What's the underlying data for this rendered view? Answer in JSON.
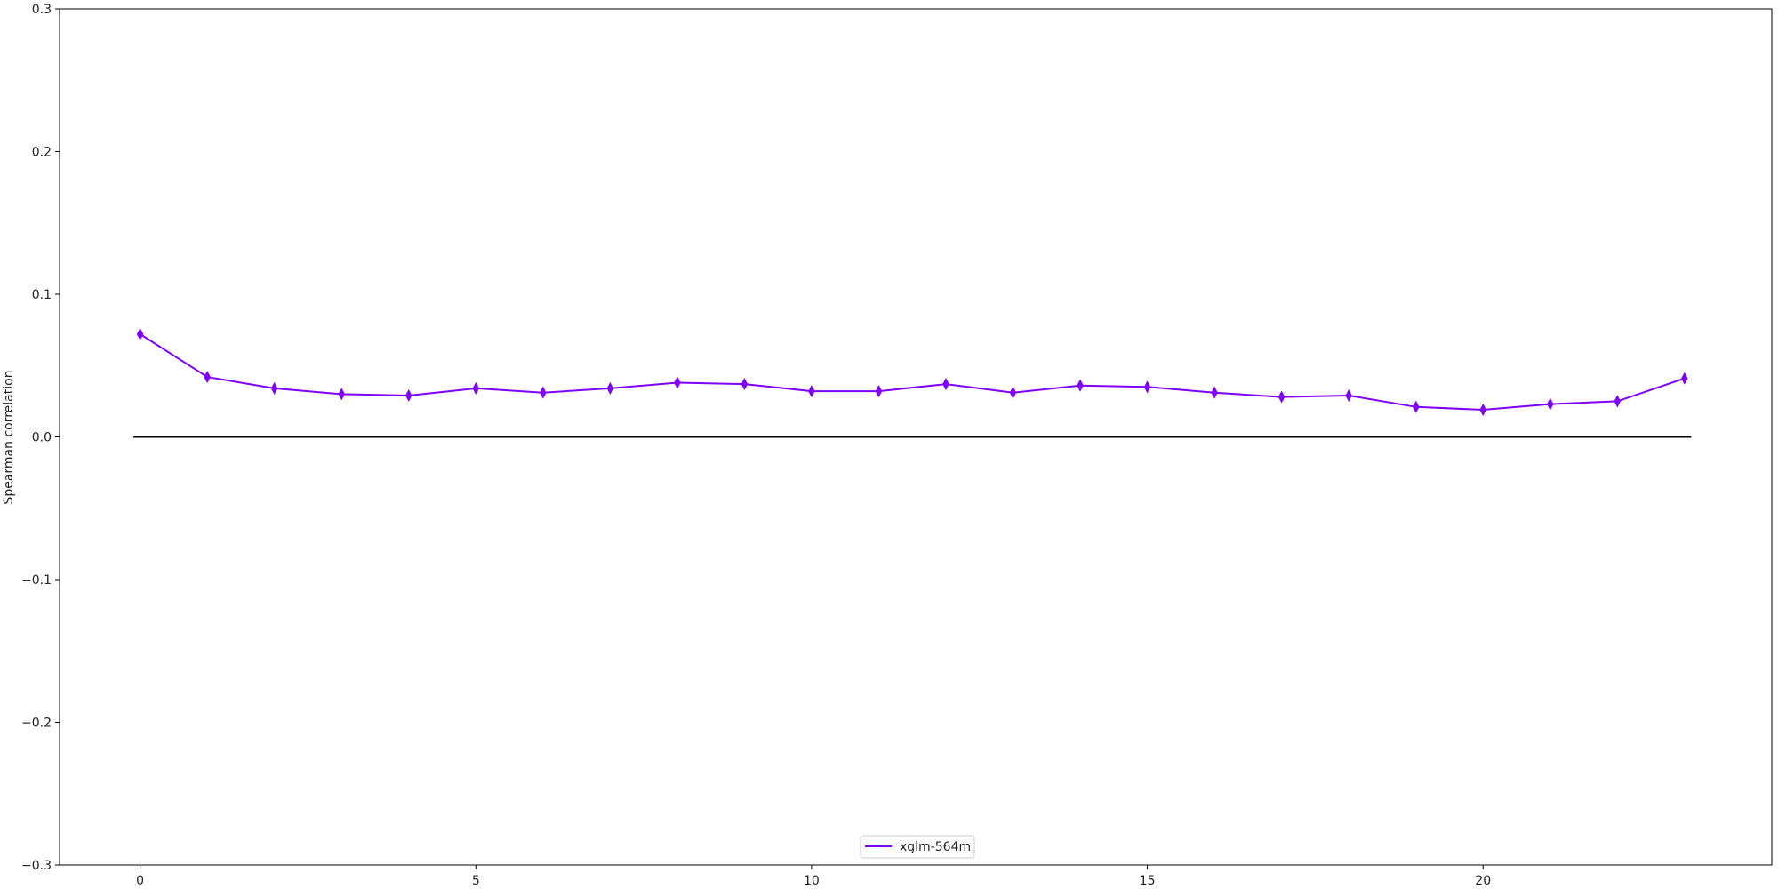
{
  "chart_data": {
    "type": "line",
    "title": "",
    "xlabel": "",
    "ylabel": "Spearman correlation",
    "xlim": [
      -1.2,
      24.3
    ],
    "ylim": [
      -0.3,
      0.3
    ],
    "xticks": [
      0,
      5,
      10,
      15,
      20
    ],
    "yticks": [
      -0.3,
      -0.2,
      -0.1,
      0.0,
      0.1,
      0.2,
      0.3
    ],
    "ytick_labels": [
      "−0.3",
      "−0.2",
      "−0.1",
      "0.0",
      "0.1",
      "0.2",
      "0.3"
    ],
    "grid": false,
    "legend_position": "bottom-center",
    "reference_line": {
      "y": 0.0,
      "x_range": [
        -0.1,
        23.1
      ],
      "color": "#000000"
    },
    "series": [
      {
        "name": "xglm-564m",
        "color": "#7f00ff",
        "marker": "thin_diamond",
        "x": [
          0,
          1,
          2,
          3,
          4,
          5,
          6,
          7,
          8,
          9,
          10,
          11,
          12,
          13,
          14,
          15,
          16,
          17,
          18,
          19,
          20,
          21,
          22,
          23
        ],
        "y": [
          0.072,
          0.042,
          0.034,
          0.03,
          0.029,
          0.034,
          0.031,
          0.034,
          0.038,
          0.037,
          0.032,
          0.032,
          0.037,
          0.031,
          0.036,
          0.035,
          0.031,
          0.028,
          0.029,
          0.021,
          0.019,
          0.023,
          0.025,
          0.041
        ]
      }
    ]
  }
}
